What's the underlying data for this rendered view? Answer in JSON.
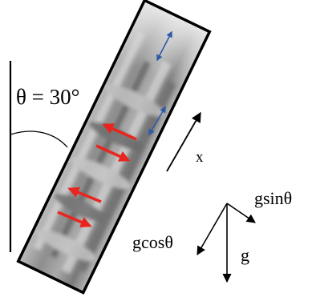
{
  "labels": {
    "angle": "θ = 30°",
    "x_axis": "x",
    "g_sin": "gsinθ",
    "g_cos": "gcosθ",
    "g": "g"
  },
  "colors": {
    "ink": "#000000",
    "flow_arrow": "#e8251f",
    "interface_arrow": "#2f5aa8",
    "tube_light": "#dcdcdc",
    "tube_dark": "#7d7d7d"
  },
  "icons": {
    "flow_arrows": "arrow-icon",
    "interface_arrows": "double-arrow-icon"
  }
}
